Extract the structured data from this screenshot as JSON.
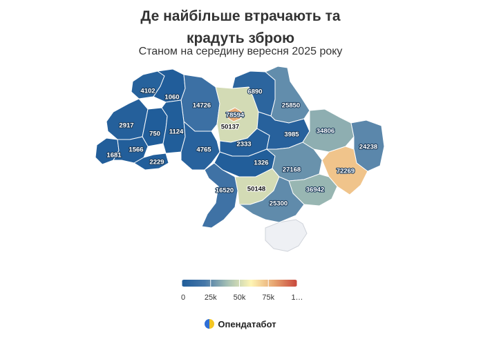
{
  "title_line1": "Де найбільше втрачають та",
  "title_line2": "крадуть зброю",
  "subtitle": "Станом на середину вересня 2025 року",
  "brand": "Опендатабот",
  "colors": {
    "scale": [
      "#1f5c99",
      "#4677a8",
      "#a7c1b4",
      "#fef5b5",
      "#e7a571",
      "#c8473c"
    ],
    "occupied": "#eef0f4"
  },
  "legend": {
    "ticks": [
      "0",
      "25k",
      "50k",
      "75k",
      "1…"
    ],
    "max": 100000
  },
  "regions": [
    {
      "id": "volyn",
      "value": 4102
    },
    {
      "id": "rivne",
      "value": 1060
    },
    {
      "id": "zhytomyr",
      "value": 14726
    },
    {
      "id": "kyiv-oblast",
      "value": 50137
    },
    {
      "id": "kyiv-city",
      "value": 78594
    },
    {
      "id": "chernihiv",
      "value": 6890
    },
    {
      "id": "sumy",
      "value": 25850
    },
    {
      "id": "lviv",
      "value": 2917
    },
    {
      "id": "ternopil",
      "value": 750
    },
    {
      "id": "khmelnytskyi",
      "value": 1124
    },
    {
      "id": "zakarpattia",
      "value": 1681
    },
    {
      "id": "ivano-frankivsk",
      "value": 1566
    },
    {
      "id": "chernivtsi",
      "value": 2229
    },
    {
      "id": "vinnytsia",
      "value": 4765
    },
    {
      "id": "cherkasy",
      "value": 2333
    },
    {
      "id": "poltava",
      "value": 3985
    },
    {
      "id": "kharkiv",
      "value": 34806
    },
    {
      "id": "luhansk",
      "value": 24238
    },
    {
      "id": "kirovohrad",
      "value": 1326
    },
    {
      "id": "dnipro",
      "value": 27168
    },
    {
      "id": "donetsk",
      "value": 72269
    },
    {
      "id": "odesa",
      "value": 16520
    },
    {
      "id": "mykolaiv",
      "value": 50148
    },
    {
      "id": "zaporizhzhia",
      "value": 36942
    },
    {
      "id": "kherson",
      "value": 25300
    }
  ]
}
